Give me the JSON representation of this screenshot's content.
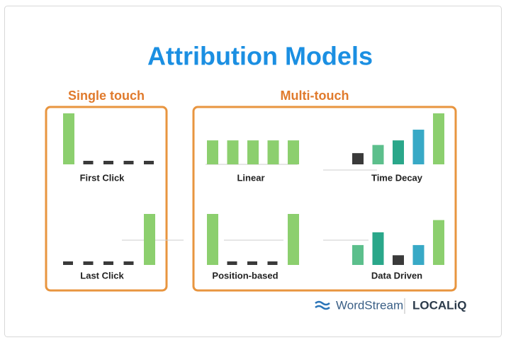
{
  "title": "Attribution Models",
  "groups": [
    {
      "label": "Single touch",
      "models": [
        {
          "label": "First Click",
          "values": [
            100,
            0,
            0,
            0,
            0
          ],
          "colors": [
            "#8ccf6e",
            "#3a3a3a",
            "#3a3a3a",
            "#3a3a3a",
            "#3a3a3a"
          ]
        },
        {
          "label": "Last Click",
          "values": [
            0,
            0,
            0,
            0,
            100
          ],
          "colors": [
            "#3a3a3a",
            "#3a3a3a",
            "#3a3a3a",
            "#3a3a3a",
            "#8ccf6e"
          ]
        }
      ]
    },
    {
      "label": "Multi-touch",
      "models": [
        {
          "label": "Linear",
          "values": [
            47,
            47,
            47,
            47,
            47
          ],
          "colors": [
            "#8ccf6e",
            "#8ccf6e",
            "#8ccf6e",
            "#8ccf6e",
            "#8ccf6e"
          ]
        },
        {
          "label": "Time Decay",
          "values": [
            22,
            38,
            47,
            68,
            100
          ],
          "colors": [
            "#3a3a3a",
            "#5cbf8c",
            "#2aa78a",
            "#38a9c6",
            "#8ccf6e"
          ]
        },
        {
          "label": "Position-based",
          "values": [
            100,
            0,
            0,
            0,
            100
          ],
          "colors": [
            "#8ccf6e",
            "#3a3a3a",
            "#3a3a3a",
            "#3a3a3a",
            "#8ccf6e"
          ]
        },
        {
          "label": "Data Driven",
          "values": [
            39,
            64,
            19,
            39,
            88
          ],
          "colors": [
            "#5cbf8c",
            "#2aa78a",
            "#3a3a3a",
            "#38a9c6",
            "#8ccf6e"
          ]
        }
      ]
    }
  ],
  "logos": {
    "wordstream": "WordStream",
    "localiq": "LOCALiQ"
  }
}
